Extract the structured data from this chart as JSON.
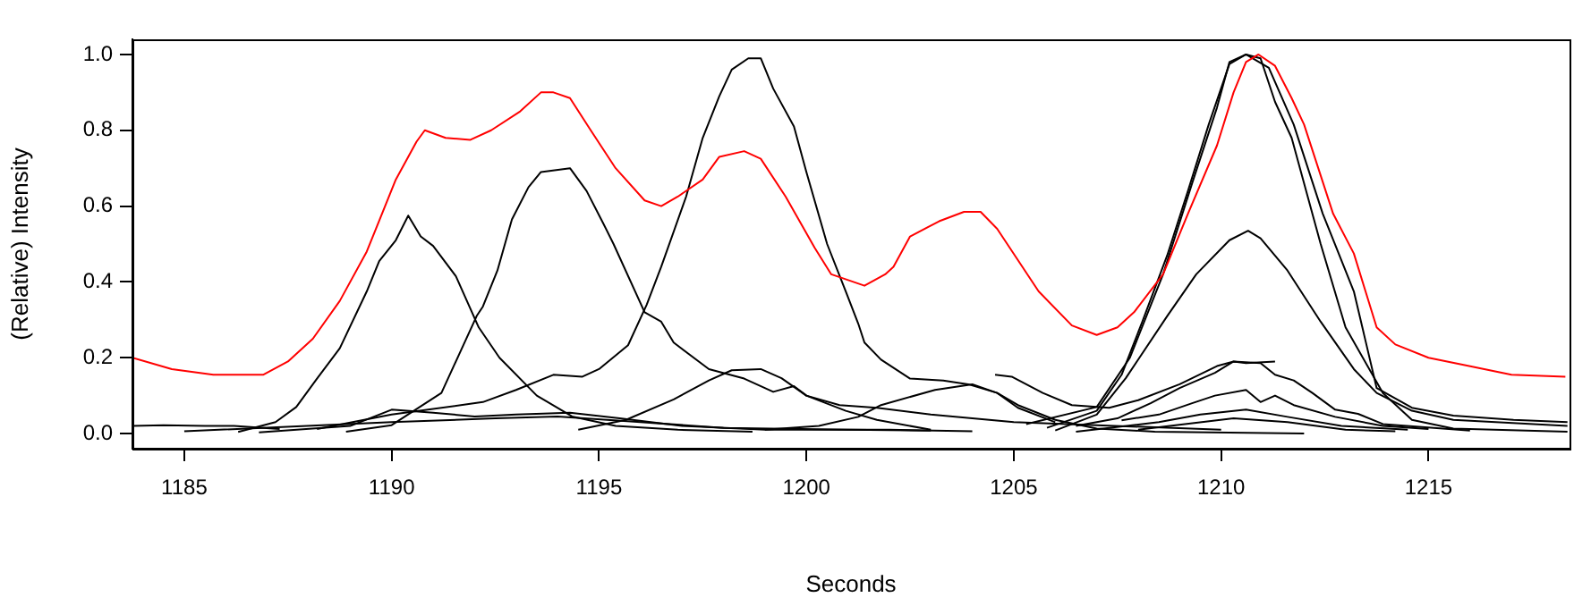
{
  "chart_data": {
    "type": "line",
    "xlabel": "Seconds",
    "ylabel": "(Relative) Intensity",
    "xlim": [
      1183.75,
      1218.4
    ],
    "ylim": [
      -0.04,
      1.04
    ],
    "xticks": [
      1185,
      1190,
      1195,
      1200,
      1205,
      1210,
      1215
    ],
    "yticks": [
      {
        "value": 0,
        "label": "0.0"
      },
      {
        "value": 0.2,
        "label": "0.2"
      },
      {
        "value": 0.4,
        "label": "0.4"
      },
      {
        "value": 0.6,
        "label": "0.6"
      },
      {
        "value": 0.8,
        "label": "0.8"
      },
      {
        "value": 1,
        "label": "1.0"
      }
    ],
    "grid": false,
    "legend": false,
    "series": [
      {
        "color": "#ff0000",
        "x": [
          1183.75,
          1184.7,
          1185.7,
          1186.9,
          1187.5,
          1188.1,
          1188.75,
          1189.4,
          1190.1,
          1190.6,
          1190.8,
          1191.3,
          1191.9,
          1192.4,
          1193.1,
          1193.6,
          1193.9,
          1194.3,
          1194.8,
          1195.4,
          1196.1,
          1196.5,
          1196.9,
          1197.5,
          1197.9,
          1198.5,
          1198.9,
          1199.5,
          1200.2,
          1200.6,
          1201.4,
          1201.9,
          1202.1,
          1202.5,
          1203.2,
          1203.8,
          1204.2,
          1204.6,
          1205.6,
          1206.4,
          1207.0,
          1207.5,
          1207.9,
          1208.6,
          1209.2,
          1209.9,
          1210.3,
          1210.6,
          1210.9,
          1211.3,
          1211.7,
          1212.0,
          1212.7,
          1213.2,
          1213.75,
          1214.2,
          1215.0,
          1215.9,
          1217.0,
          1218.3
        ],
        "values": [
          0.2,
          0.17,
          0.155,
          0.155,
          0.19,
          0.25,
          0.35,
          0.48,
          0.67,
          0.77,
          0.8,
          0.78,
          0.775,
          0.8,
          0.85,
          0.9,
          0.9,
          0.885,
          0.8,
          0.7,
          0.615,
          0.6,
          0.625,
          0.67,
          0.73,
          0.745,
          0.725,
          0.625,
          0.49,
          0.42,
          0.39,
          0.42,
          0.44,
          0.52,
          0.56,
          0.585,
          0.585,
          0.54,
          0.375,
          0.285,
          0.26,
          0.28,
          0.32,
          0.42,
          0.58,
          0.76,
          0.9,
          0.98,
          1.0,
          0.97,
          0.885,
          0.815,
          0.58,
          0.475,
          0.28,
          0.235,
          0.2,
          0.18,
          0.155,
          0.15
        ]
      },
      {
        "color": "#000000",
        "x": [
          1186.3,
          1187.2,
          1187.7,
          1188.2,
          1188.75,
          1189.4,
          1189.7,
          1190.1,
          1190.4,
          1190.7,
          1191.0,
          1191.55,
          1192.1,
          1192.6,
          1193.5,
          1194.35,
          1195.4,
          1196.9,
          1198.7
        ],
        "values": [
          0.004,
          0.03,
          0.07,
          0.145,
          0.225,
          0.375,
          0.455,
          0.51,
          0.575,
          0.52,
          0.495,
          0.415,
          0.28,
          0.2,
          0.1,
          0.045,
          0.02,
          0.01,
          0.005
        ]
      },
      {
        "color": "#000000",
        "x": [
          1188.9,
          1190.0,
          1191.2,
          1192.05,
          1192.2,
          1192.55,
          1192.9,
          1193.3,
          1193.6,
          1194.3,
          1194.7,
          1195.1,
          1195.35,
          1196.1,
          1196.5,
          1196.8,
          1197.65,
          1198.5,
          1199.2,
          1199.7,
          1200.0,
          1200.8,
          1201.7,
          1203.0,
          1205.0,
          1210.0
        ],
        "values": [
          0.005,
          0.022,
          0.107,
          0.31,
          0.335,
          0.43,
          0.565,
          0.65,
          0.69,
          0.7,
          0.64,
          0.555,
          0.5,
          0.32,
          0.295,
          0.24,
          0.17,
          0.145,
          0.11,
          0.125,
          0.1,
          0.075,
          0.068,
          0.05,
          0.03,
          0.01
        ]
      },
      {
        "color": "#000000",
        "x": [
          1188.2,
          1190.0,
          1192.2,
          1193.0,
          1193.9,
          1194.6,
          1195.0,
          1195.7,
          1196.15,
          1196.5,
          1197.1,
          1197.5,
          1197.9,
          1198.2,
          1198.6,
          1198.9,
          1199.2,
          1199.7,
          1200.0,
          1200.5,
          1200.95,
          1201.25,
          1201.4,
          1201.8,
          1202.5,
          1203.3,
          1203.9,
          1204.6,
          1205.1,
          1206.0,
          1207.0,
          1208.4,
          1212.0
        ],
        "values": [
          0.012,
          0.05,
          0.083,
          0.115,
          0.155,
          0.15,
          0.17,
          0.233,
          0.34,
          0.44,
          0.625,
          0.78,
          0.89,
          0.96,
          0.99,
          0.99,
          0.91,
          0.81,
          0.69,
          0.5,
          0.375,
          0.29,
          0.24,
          0.195,
          0.145,
          0.14,
          0.13,
          0.107,
          0.075,
          0.036,
          0.013,
          0.005,
          0
        ]
      },
      {
        "color": "#000000",
        "x": [
          1205.8,
          1207.0,
          1207.6,
          1208.1,
          1208.7,
          1209.2,
          1209.7,
          1210.2,
          1210.6,
          1210.95,
          1211.3,
          1211.7,
          1212.4,
          1213.0,
          1213.9,
          1214.6,
          1215.6,
          1218.35
        ],
        "values": [
          0.015,
          0.06,
          0.155,
          0.295,
          0.47,
          0.64,
          0.815,
          0.975,
          1.0,
          0.99,
          0.875,
          0.78,
          0.5,
          0.28,
          0.107,
          0.036,
          0.013,
          0.005
        ]
      },
      {
        "color": "#000000",
        "x": [
          1205.3,
          1207.0,
          1207.8,
          1208.6,
          1209.3,
          1209.9,
          1210.2,
          1210.6,
          1211.15,
          1211.75,
          1212.45,
          1213.2,
          1213.75,
          1214.6,
          1215.6,
          1217.05,
          1218.35
        ],
        "values": [
          0.025,
          0.07,
          0.2,
          0.42,
          0.66,
          0.86,
          0.98,
          1.0,
          0.965,
          0.815,
          0.58,
          0.375,
          0.12,
          0.068,
          0.047,
          0.036,
          0.03
        ]
      },
      {
        "color": "#000000",
        "x": [
          1206.0,
          1207.0,
          1207.7,
          1208.7,
          1209.4,
          1210.2,
          1210.65,
          1210.95,
          1211.6,
          1212.4,
          1213.2,
          1213.75,
          1214.6,
          1215.6,
          1218.35
        ],
        "values": [
          0.008,
          0.05,
          0.146,
          0.31,
          0.42,
          0.51,
          0.535,
          0.515,
          0.43,
          0.295,
          0.17,
          0.107,
          0.06,
          0.036,
          0.02
        ]
      },
      {
        "color": "#000000",
        "x": [
          1194.5,
          1195.65,
          1196.8,
          1197.65,
          1198.2,
          1198.9,
          1199.4,
          1200.0,
          1200.95,
          1201.7,
          1203.0
        ],
        "values": [
          0.01,
          0.036,
          0.09,
          0.14,
          0.167,
          0.17,
          0.146,
          0.1,
          0.06,
          0.036,
          0.01
        ]
      },
      {
        "color": "#000000",
        "x": [
          1199.0,
          1200.3,
          1201.25,
          1201.8,
          1203.1,
          1204.0,
          1204.6,
          1205.1,
          1206.0
        ],
        "values": [
          0.01,
          0.02,
          0.044,
          0.075,
          0.115,
          0.13,
          0.107,
          0.068,
          0.03
        ]
      },
      {
        "color": "#000000",
        "x": [
          1204.55,
          1204.95,
          1205.7,
          1206.4,
          1207.3,
          1208.0,
          1209.0,
          1209.9,
          1210.3,
          1210.6,
          1211.3
        ],
        "values": [
          0.155,
          0.15,
          0.107,
          0.075,
          0.068,
          0.088,
          0.13,
          0.178,
          0.19,
          0.186,
          0.19
        ]
      },
      {
        "color": "#000000",
        "x": [
          1206.5,
          1207.5,
          1208.3,
          1209.0,
          1209.85,
          1210.3,
          1210.95,
          1211.3,
          1211.75,
          1212.2,
          1212.75,
          1213.3,
          1213.9,
          1216.0
        ],
        "values": [
          0.02,
          0.04,
          0.08,
          0.12,
          0.16,
          0.19,
          0.186,
          0.155,
          0.14,
          0.107,
          0.063,
          0.052,
          0.025,
          0.008
        ]
      },
      {
        "color": "#000000",
        "x": [
          1207.6,
          1208.5,
          1209.3,
          1209.85,
          1210.6,
          1210.95,
          1211.3,
          1211.75,
          1212.75,
          1213.9,
          1215.0
        ],
        "values": [
          0.035,
          0.05,
          0.08,
          0.1,
          0.115,
          0.083,
          0.1,
          0.075,
          0.044,
          0.02,
          0.012
        ]
      },
      {
        "color": "#000000",
        "x": [
          1206.5,
          1208.5,
          1209.5,
          1210.6,
          1211.6,
          1212.9,
          1214.5
        ],
        "values": [
          0.005,
          0.03,
          0.05,
          0.063,
          0.044,
          0.02,
          0.01
        ]
      },
      {
        "color": "#000000",
        "x": [
          1208.0,
          1210.3,
          1211.6,
          1213.0,
          1214.2
        ],
        "values": [
          0.01,
          0.04,
          0.03,
          0.01,
          0.006
        ]
      },
      {
        "color": "#000000",
        "x": [
          1183.75,
          1184.5,
          1185.5,
          1186.2,
          1187.3
        ],
        "values": [
          0.02,
          0.022,
          0.02,
          0.02,
          0.012
        ]
      },
      {
        "color": "#000000",
        "x": [
          1186.8,
          1189.0,
          1190.0,
          1191.0,
          1192.0,
          1193.0,
          1194.3,
          1195.5,
          1197.0,
          1199.0,
          1202.0,
          1204.0
        ],
        "values": [
          0.003,
          0.02,
          0.063,
          0.055,
          0.045,
          0.05,
          0.055,
          0.04,
          0.02,
          0.01,
          0.01,
          0.006
        ]
      },
      {
        "color": "#000000",
        "x": [
          1185.0,
          1190.0,
          1192.5,
          1194.0,
          1196.0,
          1198.0,
          1201.0,
          1203.0
        ],
        "values": [
          0.006,
          0.03,
          0.04,
          0.045,
          0.03,
          0.015,
          0.01,
          0.008
        ]
      }
    ]
  }
}
